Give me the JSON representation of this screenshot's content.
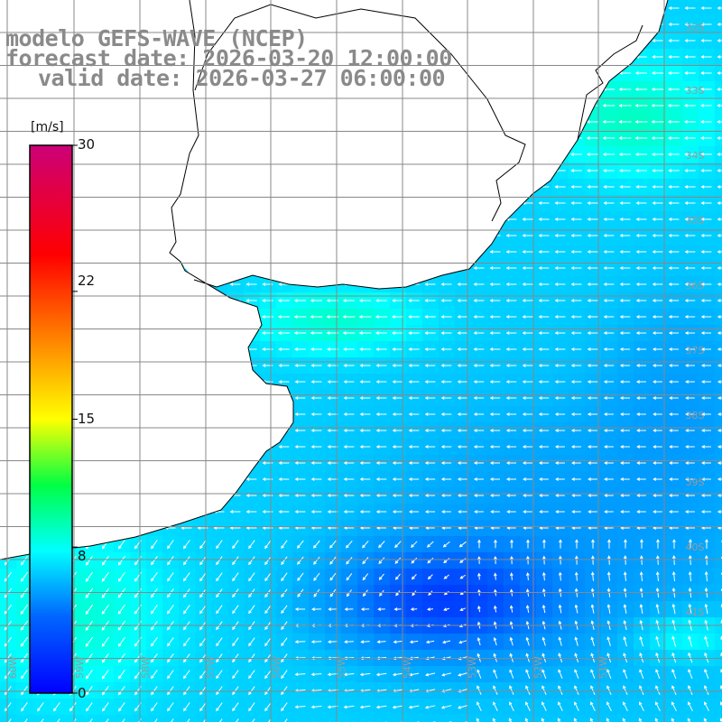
{
  "title": {
    "line1": "modelo GEFS-WAVE (NCEP)",
    "line2": "forecast date: 2026-03-20 12:00:00",
    "line3": "valid date: 2026-03-27 06:00:00"
  },
  "colorbar": {
    "unit": "[m/s]",
    "ticks": [
      "30",
      "22",
      "15",
      "8",
      "0"
    ],
    "tick_values": [
      30,
      22,
      15,
      8,
      0
    ],
    "range": [
      0,
      30
    ]
  },
  "map": {
    "variable": "wind speed and direction",
    "lat_labels": [
      "32S",
      "33S",
      "34S",
      "35S",
      "36S",
      "37S",
      "38S",
      "39S",
      "40S",
      "41S"
    ],
    "lon_labels": [
      "60W",
      "59W",
      "58W",
      "57W",
      "56W",
      "55W",
      "54W",
      "53W",
      "52W",
      "51W"
    ],
    "land_color": "#ffffff",
    "coastline_color": "#000000",
    "grid_color": "#888888",
    "arrow_color": "#ffffff"
  }
}
